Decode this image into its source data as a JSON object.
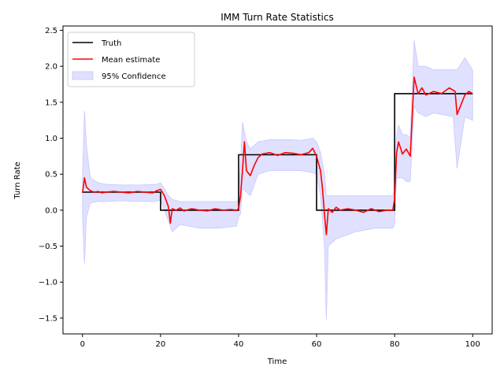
{
  "chart_data": {
    "type": "line",
    "title": "IMM Turn Rate Statistics",
    "xlabel": "Time",
    "ylabel": "Turn Rate",
    "xlim": [
      -5,
      105
    ],
    "ylim": [
      -1.72,
      2.56
    ],
    "x_ticks": [
      "0",
      "20",
      "40",
      "60",
      "80",
      "100"
    ],
    "y_ticks": [
      "−1.5",
      "−1.0",
      "−0.5",
      "0.0",
      "0.5",
      "1.0",
      "1.5",
      "2.0",
      "2.5"
    ],
    "legend": {
      "position": "upper-left",
      "entries": [
        "Truth",
        "Mean estimate",
        "95% Confidence"
      ]
    },
    "grid": false,
    "colors": {
      "truth": "#000000",
      "mean": "#ff0000",
      "confidence": "#e0e0ff",
      "confidence_edge": "#c8c8ff"
    },
    "series": [
      {
        "name": "Truth",
        "style": "step",
        "x": [
          0,
          20,
          20,
          40,
          40,
          60,
          60,
          80,
          80,
          100
        ],
        "y": [
          0.25,
          0.25,
          0.0,
          0.0,
          0.77,
          0.77,
          0.0,
          0.0,
          1.62,
          1.62
        ]
      },
      {
        "name": "Mean estimate",
        "x": [
          0,
          0.5,
          1,
          2,
          3,
          4,
          5,
          6,
          8,
          10,
          12,
          14,
          16,
          18,
          19,
          20,
          21,
          22,
          22.5,
          23,
          24,
          25,
          26,
          28,
          30,
          32,
          34,
          36,
          38,
          39.5,
          40,
          40.5,
          41,
          41.5,
          42,
          43,
          44,
          45,
          46,
          48,
          50,
          52,
          54,
          56,
          58,
          59,
          60,
          61,
          61.5,
          62,
          62.5,
          63,
          64,
          65,
          66,
          68,
          70,
          72,
          74,
          76,
          78,
          79.5,
          80,
          80.5,
          81,
          82,
          83,
          84,
          84.5,
          85,
          86,
          87,
          88,
          90,
          92,
          94,
          95.5,
          96,
          98,
          99,
          100
        ],
        "y": [
          0.24,
          0.45,
          0.32,
          0.27,
          0.25,
          0.26,
          0.24,
          0.25,
          0.26,
          0.25,
          0.24,
          0.26,
          0.25,
          0.24,
          0.27,
          0.29,
          0.2,
          0.05,
          -0.18,
          0.02,
          0.0,
          0.03,
          -0.01,
          0.02,
          0.0,
          -0.01,
          0.02,
          0.0,
          0.01,
          0.0,
          0.02,
          0.2,
          0.55,
          0.95,
          0.55,
          0.48,
          0.62,
          0.73,
          0.78,
          0.8,
          0.76,
          0.8,
          0.79,
          0.77,
          0.8,
          0.86,
          0.75,
          0.55,
          0.3,
          -0.05,
          -0.34,
          0.02,
          -0.03,
          0.04,
          0.0,
          0.02,
          0.0,
          -0.03,
          0.02,
          -0.02,
          0.0,
          0.0,
          0.15,
          0.8,
          0.95,
          0.78,
          0.85,
          0.75,
          1.3,
          1.85,
          1.62,
          1.7,
          1.6,
          1.65,
          1.62,
          1.7,
          1.65,
          1.33,
          1.6,
          1.65,
          1.62
        ]
      },
      {
        "name": "95% Confidence",
        "style": "band",
        "x": [
          0,
          0.5,
          1,
          2,
          4,
          6,
          10,
          15,
          19,
          20,
          21,
          22,
          23,
          25,
          30,
          35,
          39.5,
          40,
          40.5,
          41,
          42,
          43,
          45,
          48,
          52,
          56,
          59,
          60,
          61,
          62,
          62.5,
          63,
          65,
          70,
          75,
          79.5,
          80,
          80.5,
          81,
          82,
          83,
          84,
          85,
          86,
          88,
          90,
          95,
          96,
          98,
          100
        ],
        "upper": [
          0.5,
          1.38,
          0.9,
          0.45,
          0.38,
          0.36,
          0.35,
          0.35,
          0.36,
          0.38,
          0.3,
          0.2,
          0.15,
          0.12,
          0.12,
          0.12,
          0.12,
          0.15,
          0.65,
          1.22,
          0.95,
          0.85,
          0.95,
          0.98,
          0.98,
          0.97,
          1.0,
          0.95,
          0.8,
          0.5,
          0.2,
          0.2,
          0.2,
          0.2,
          0.2,
          0.2,
          0.3,
          1.02,
          1.18,
          1.05,
          1.05,
          1.0,
          2.36,
          2.0,
          2.0,
          1.95,
          1.95,
          1.95,
          2.12,
          1.95
        ],
        "lower": [
          -0.1,
          -0.74,
          -0.1,
          0.1,
          0.12,
          0.12,
          0.13,
          0.12,
          0.12,
          0.14,
          0.0,
          -0.15,
          -0.3,
          -0.2,
          -0.25,
          -0.25,
          -0.22,
          -0.1,
          -0.05,
          0.3,
          0.25,
          0.2,
          0.5,
          0.55,
          0.55,
          0.55,
          0.52,
          0.5,
          0.2,
          -0.5,
          -1.52,
          -0.5,
          -0.4,
          -0.3,
          -0.25,
          -0.25,
          -0.2,
          0.45,
          0.45,
          0.45,
          0.4,
          0.4,
          1.45,
          1.35,
          1.3,
          1.35,
          1.3,
          0.58,
          1.3,
          1.25
        ]
      }
    ]
  }
}
